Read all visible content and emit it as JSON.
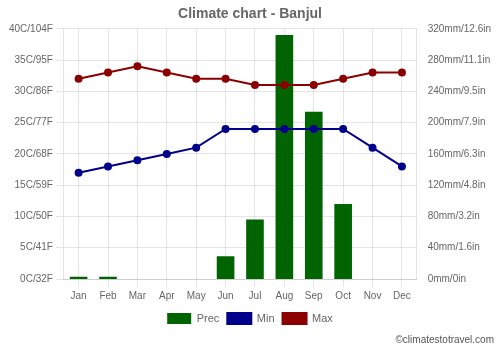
{
  "chart_data": {
    "type": "bar",
    "title": "Climate chart - Banjul",
    "categories": [
      "Jan",
      "Feb",
      "Mar",
      "Apr",
      "May",
      "Jun",
      "Jul",
      "Aug",
      "Sep",
      "Oct",
      "Nov",
      "Dec"
    ],
    "series": [
      {
        "name": "Prec",
        "type": "bar",
        "color": "#006400",
        "axis": "y2",
        "values": [
          3,
          3,
          0,
          0,
          0,
          29,
          76,
          312,
          214,
          96,
          0,
          0
        ]
      },
      {
        "name": "Min",
        "type": "line",
        "color": "#00008B",
        "marker": "circle",
        "line_style": "solid",
        "values": [
          17,
          18,
          19,
          20,
          21,
          24,
          24,
          24,
          24,
          24,
          21,
          18
        ]
      },
      {
        "name": "Max",
        "type": "line",
        "color": "#8B0000",
        "marker": "circle",
        "line_style": "solid",
        "values": [
          32,
          33,
          34,
          33,
          32,
          32,
          31,
          31,
          31,
          32,
          33,
          33
        ]
      }
    ],
    "ylim": [
      0,
      40
    ],
    "yticks": [
      {
        "value": 0,
        "label": "0C/32F"
      },
      {
        "value": 5,
        "label": "5C/41F"
      },
      {
        "value": 10,
        "label": "10C/50F"
      },
      {
        "value": 15,
        "label": "15C/59F"
      },
      {
        "value": 20,
        "label": "20C/68F"
      },
      {
        "value": 25,
        "label": "25C/77F"
      },
      {
        "value": 30,
        "label": "30C/86F"
      },
      {
        "value": 35,
        "label": "35C/95F"
      },
      {
        "value": 40,
        "label": "40C/104F"
      }
    ],
    "y2lim": [
      0,
      320
    ],
    "y2ticks": [
      {
        "value": 0,
        "label": "0mm/0in"
      },
      {
        "value": 40,
        "label": "40mm/1.6in"
      },
      {
        "value": 80,
        "label": "80mm/3.2in"
      },
      {
        "value": 120,
        "label": "120mm/4.8in"
      },
      {
        "value": 160,
        "label": "160mm/6.3in"
      },
      {
        "value": 200,
        "label": "200mm/7.9in"
      },
      {
        "value": 240,
        "label": "240mm/9.5in"
      },
      {
        "value": 280,
        "label": "280mm/11.1in"
      },
      {
        "value": 320,
        "label": "320mm/12.6in"
      }
    ],
    "grid": true,
    "legend": "bottom",
    "annotations": [
      "©climatestotravel.com"
    ]
  }
}
